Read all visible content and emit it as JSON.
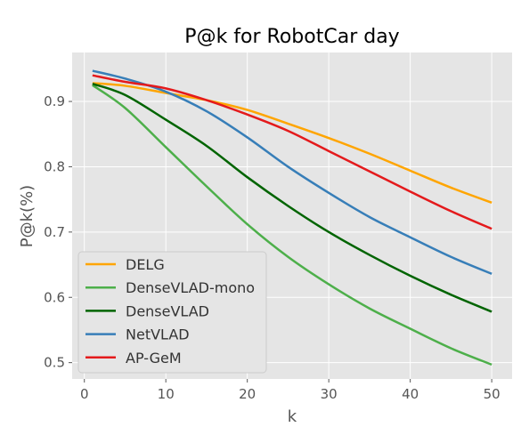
{
  "chart_data": {
    "type": "line",
    "title": "P@k for RobotCar day",
    "xlabel": "k",
    "ylabel": "P@k(%)",
    "xlim": [
      -1.5,
      52.5
    ],
    "ylim": [
      0.475,
      0.975
    ],
    "xticks": [
      0,
      10,
      20,
      30,
      40,
      50
    ],
    "yticks": [
      0.5,
      0.6,
      0.7,
      0.8,
      0.9
    ],
    "ytick_labels": [
      "0.5",
      "0.6",
      "0.7",
      "0.8",
      "0.9"
    ],
    "grid": true,
    "legend_position": "lower-left",
    "x": [
      1,
      5,
      10,
      15,
      20,
      25,
      30,
      35,
      40,
      45,
      50
    ],
    "series": [
      {
        "name": "DELG",
        "color": "#ffa500",
        "values": [
          0.928,
          0.924,
          0.913,
          0.902,
          0.887,
          0.866,
          0.844,
          0.82,
          0.794,
          0.768,
          0.745
        ]
      },
      {
        "name": "DenseVLAD-mono",
        "color": "#4daf4a",
        "values": [
          0.925,
          0.89,
          0.83,
          0.77,
          0.712,
          0.662,
          0.62,
          0.583,
          0.552,
          0.522,
          0.497
        ]
      },
      {
        "name": "DenseVLAD",
        "color": "#006400",
        "values": [
          0.927,
          0.91,
          0.872,
          0.832,
          0.784,
          0.74,
          0.7,
          0.665,
          0.633,
          0.604,
          0.578
        ]
      },
      {
        "name": "NetVLAD",
        "color": "#377eb8",
        "values": [
          0.947,
          0.935,
          0.915,
          0.885,
          0.845,
          0.8,
          0.76,
          0.723,
          0.692,
          0.662,
          0.636
        ]
      },
      {
        "name": "AP-GeM",
        "color": "#e41a1c",
        "values": [
          0.94,
          0.93,
          0.92,
          0.902,
          0.88,
          0.855,
          0.824,
          0.793,
          0.762,
          0.732,
          0.705
        ]
      }
    ]
  }
}
